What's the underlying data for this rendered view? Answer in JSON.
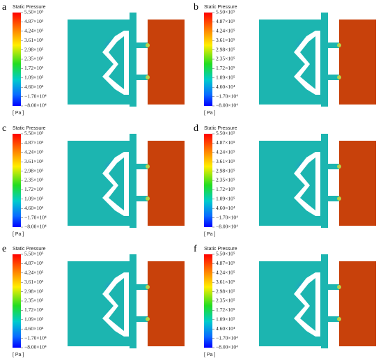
{
  "panels": [
    {
      "label": "a"
    },
    {
      "label": "b"
    },
    {
      "label": "c"
    },
    {
      "label": "d"
    },
    {
      "label": "e"
    },
    {
      "label": "f"
    }
  ],
  "legend": {
    "title": "Static Pressure",
    "unit": "[ Pa ]",
    "ticks": [
      "5.50×10⁵",
      "4.87×10⁵",
      "4.24×10⁵",
      "3.61×10⁵",
      "2.98×10⁵",
      "2.35×10⁵",
      "1.72×10⁵",
      "1.09×10⁵",
      "4.60×10⁴",
      "−1.70×10⁴",
      "−8.00×10⁴"
    ]
  }
}
